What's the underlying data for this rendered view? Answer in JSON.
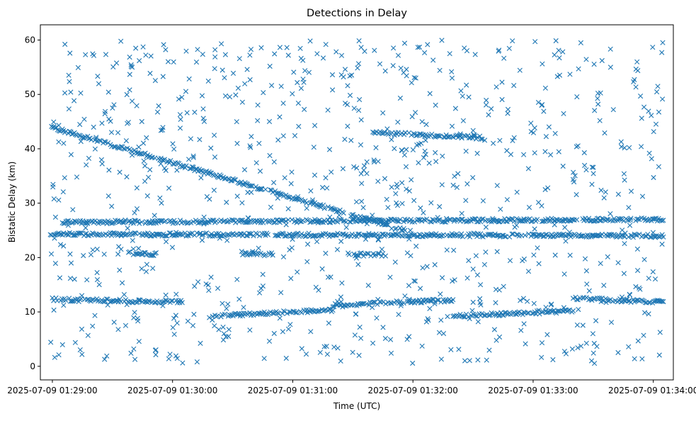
{
  "chart_data": {
    "type": "scatter",
    "title": "Detections in Delay",
    "xlabel": "Time (UTC)",
    "ylabel": "Bistatic Delay (km)",
    "marker": "x",
    "color": "#1f77b4",
    "grid": false,
    "xlim": [
      "2025-07-09 01:28:54",
      "2025-07-09 01:34:10"
    ],
    "ylim": [
      -2.5,
      62.8
    ],
    "x_ticks": [
      "2025-07-09 01:29:00",
      "2025-07-09 01:30:00",
      "2025-07-09 01:31:00",
      "2025-07-09 01:32:00",
      "2025-07-09 01:33:00",
      "2025-07-09 01:34:00"
    ],
    "y_ticks": [
      0,
      10,
      20,
      30,
      40,
      50,
      60
    ],
    "tracks": [
      {
        "t_start": "2025-07-09 01:28:59",
        "t_end": "2025-07-09 01:31:56",
        "delay_start": 44.0,
        "delay_end": 25.0
      },
      {
        "t_start": "2025-07-09 01:28:59",
        "t_end": "2025-07-09 01:34:05",
        "delay_start": 24.3,
        "delay_end": 24.0
      },
      {
        "t_start": "2025-07-09 01:29:05",
        "t_end": "2025-07-09 01:34:05",
        "delay_start": 26.5,
        "delay_end": 27.0
      },
      {
        "t_start": "2025-07-09 01:29:00",
        "t_end": "2025-07-09 01:30:05",
        "delay_start": 12.3,
        "delay_end": 11.8
      },
      {
        "t_start": "2025-07-09 01:30:20",
        "t_end": "2025-07-09 01:31:20",
        "delay_start": 9.3,
        "delay_end": 10.3
      },
      {
        "t_start": "2025-07-09 01:31:20",
        "t_end": "2025-07-09 01:32:20",
        "delay_start": 11.2,
        "delay_end": 12.2
      },
      {
        "t_start": "2025-07-09 01:32:20",
        "t_end": "2025-07-09 01:33:20",
        "delay_start": 9.2,
        "delay_end": 10.2
      },
      {
        "t_start": "2025-07-09 01:33:20",
        "t_end": "2025-07-09 01:34:05",
        "delay_start": 12.5,
        "delay_end": 11.8
      },
      {
        "t_start": "2025-07-09 01:31:40",
        "t_end": "2025-07-09 01:32:35",
        "delay_start": 43.0,
        "delay_end": 42.0
      },
      {
        "t_start": "2025-07-09 01:30:35",
        "t_end": "2025-07-09 01:30:50",
        "delay_start": 20.7,
        "delay_end": 20.6
      },
      {
        "t_start": "2025-07-09 01:29:38",
        "t_end": "2025-07-09 01:29:52",
        "delay_start": 20.8,
        "delay_end": 20.6
      },
      {
        "t_start": "2025-07-09 01:31:30",
        "t_end": "2025-07-09 01:31:45",
        "delay_start": 20.6,
        "delay_end": 20.5
      }
    ],
    "clutter": {
      "t_range": [
        "2025-07-09 01:28:59",
        "2025-07-09 01:34:05"
      ],
      "delay_range": [
        0.5,
        60.0
      ],
      "count": 900
    }
  }
}
